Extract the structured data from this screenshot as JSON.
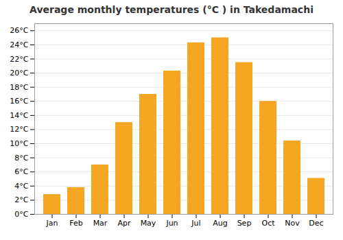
{
  "chart_data": {
    "type": "bar",
    "title": "Average monthly temperatures (°C ) in Takedamachi",
    "categories": [
      "Jan",
      "Feb",
      "Mar",
      "Apr",
      "May",
      "Jun",
      "Jul",
      "Aug",
      "Sep",
      "Oct",
      "Nov",
      "Dec"
    ],
    "values": [
      2.8,
      3.8,
      7.0,
      13.0,
      17.0,
      20.3,
      24.3,
      25.0,
      21.5,
      16.0,
      10.4,
      5.1
    ],
    "color": "#F5A623",
    "ylim": [
      0,
      27
    ],
    "yticks": [
      {
        "value": 0,
        "label": "0°C"
      },
      {
        "value": 2,
        "label": "2°C"
      },
      {
        "value": 4,
        "label": "4°C"
      },
      {
        "value": 6,
        "label": "6°C"
      },
      {
        "value": 8,
        "label": "8°C"
      },
      {
        "value": 10,
        "label": "10°C"
      },
      {
        "value": 12,
        "label": "12°C"
      },
      {
        "value": 14,
        "label": "14°C"
      },
      {
        "value": 16,
        "label": "16°C"
      },
      {
        "value": 18,
        "label": "18°C"
      },
      {
        "value": 20,
        "label": "20°C"
      },
      {
        "value": 22,
        "label": "22°C"
      },
      {
        "value": 24,
        "label": "24°C"
      },
      {
        "value": 26,
        "label": "26°C"
      }
    ],
    "grid": true
  }
}
